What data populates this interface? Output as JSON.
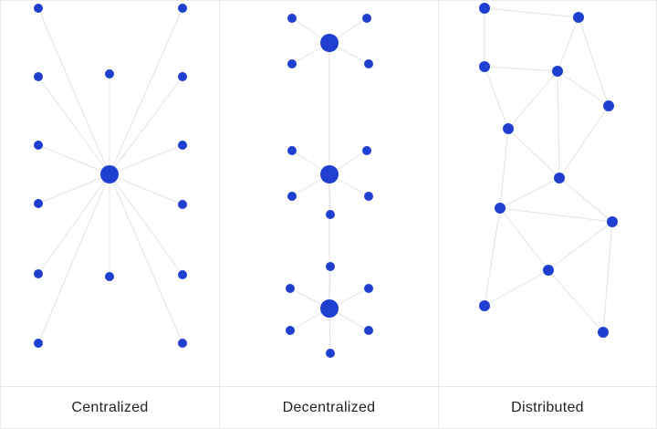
{
  "colors": {
    "node": "#1f3fd1",
    "edge": "#e3e3e3",
    "divider": "#ececec",
    "text": "#222222"
  },
  "panels": [
    {
      "caption": "Centralized"
    },
    {
      "caption": "Decentralized"
    },
    {
      "caption": "Distributed"
    }
  ]
}
